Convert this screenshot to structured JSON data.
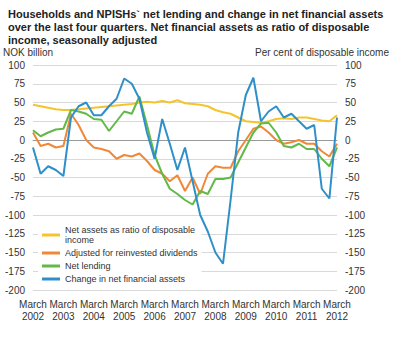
{
  "chart_data": {
    "type": "line",
    "title": "Households and NPISHs` net lending and change in net financial assets over the last four quarters. Net financial assets as ratio of disposable income, seasonally adjusted",
    "y_label": "NOK billion",
    "y2_label": "Per cent of disposable income",
    "categories": [
      "March 2002",
      null,
      null,
      null,
      "March 2003",
      null,
      null,
      null,
      "March 2004",
      null,
      null,
      null,
      "March 2005",
      null,
      null,
      null,
      "March 2006",
      null,
      null,
      null,
      "March 2007",
      null,
      null,
      null,
      "March 2008",
      null,
      null,
      null,
      "March 2009",
      null,
      null,
      null,
      "March 2010",
      null,
      null,
      null,
      "March 2011",
      null,
      null,
      null,
      "March 2012"
    ],
    "series": [
      {
        "name": "Net assets as ratio of disposable income",
        "color": "#f5c42c",
        "axis": "y2",
        "values": [
          47,
          45,
          43,
          41,
          40,
          40,
          41,
          42,
          43,
          44,
          45,
          46,
          47,
          48,
          50,
          51,
          50,
          52,
          50,
          53,
          49,
          48,
          47,
          45,
          40,
          37,
          35,
          30,
          25,
          24,
          23,
          25,
          28,
          29,
          28,
          30,
          30,
          28,
          26,
          25,
          33
        ]
      },
      {
        "name": "Adjusted for reinvested dividends",
        "color": "#f0883a",
        "values": [
          10,
          -8,
          -5,
          -10,
          -8,
          35,
          20,
          0,
          -10,
          -12,
          -15,
          -25,
          -20,
          -22,
          -18,
          -28,
          -40,
          -45,
          -55,
          -47,
          -68,
          -50,
          -72,
          -45,
          -35,
          -37,
          -37,
          -15,
          0,
          15,
          18,
          10,
          0,
          -5,
          -3,
          0,
          -5,
          -5,
          -15,
          -22,
          -5
        ]
      },
      {
        "name": "Net lending",
        "color": "#62b948",
        "values": [
          13,
          5,
          10,
          14,
          15,
          40,
          38,
          35,
          28,
          27,
          12,
          25,
          38,
          35,
          58,
          20,
          -20,
          -45,
          -65,
          -72,
          -80,
          -86,
          -68,
          -72,
          -52,
          -52,
          -50,
          -30,
          -10,
          10,
          22,
          23,
          10,
          -8,
          -10,
          -5,
          -12,
          -12,
          -25,
          -35,
          -10
        ]
      },
      {
        "name": "Change in net financial assets",
        "color": "#2f8fc9",
        "values": [
          -10,
          -45,
          -35,
          -40,
          -48,
          30,
          45,
          50,
          33,
          33,
          45,
          55,
          82,
          75,
          55,
          10,
          -25,
          28,
          -5,
          -40,
          -10,
          -55,
          -100,
          -122,
          -150,
          -165,
          -80,
          10,
          60,
          83,
          25,
          38,
          45,
          30,
          35,
          25,
          15,
          20,
          -65,
          -78,
          30
        ]
      }
    ],
    "ylim": [
      -200,
      100
    ],
    "yticks": [
      -200,
      -175,
      -150,
      -125,
      -100,
      -75,
      -50,
      -25,
      0,
      25,
      50,
      75,
      100
    ],
    "y2lim": [
      -200,
      100
    ],
    "y2ticks": [
      -200,
      -175,
      -150,
      -125,
      -100,
      -75,
      -50,
      -25,
      0,
      25,
      50,
      75,
      100
    ],
    "grid": true,
    "legend": "bottom-left"
  }
}
